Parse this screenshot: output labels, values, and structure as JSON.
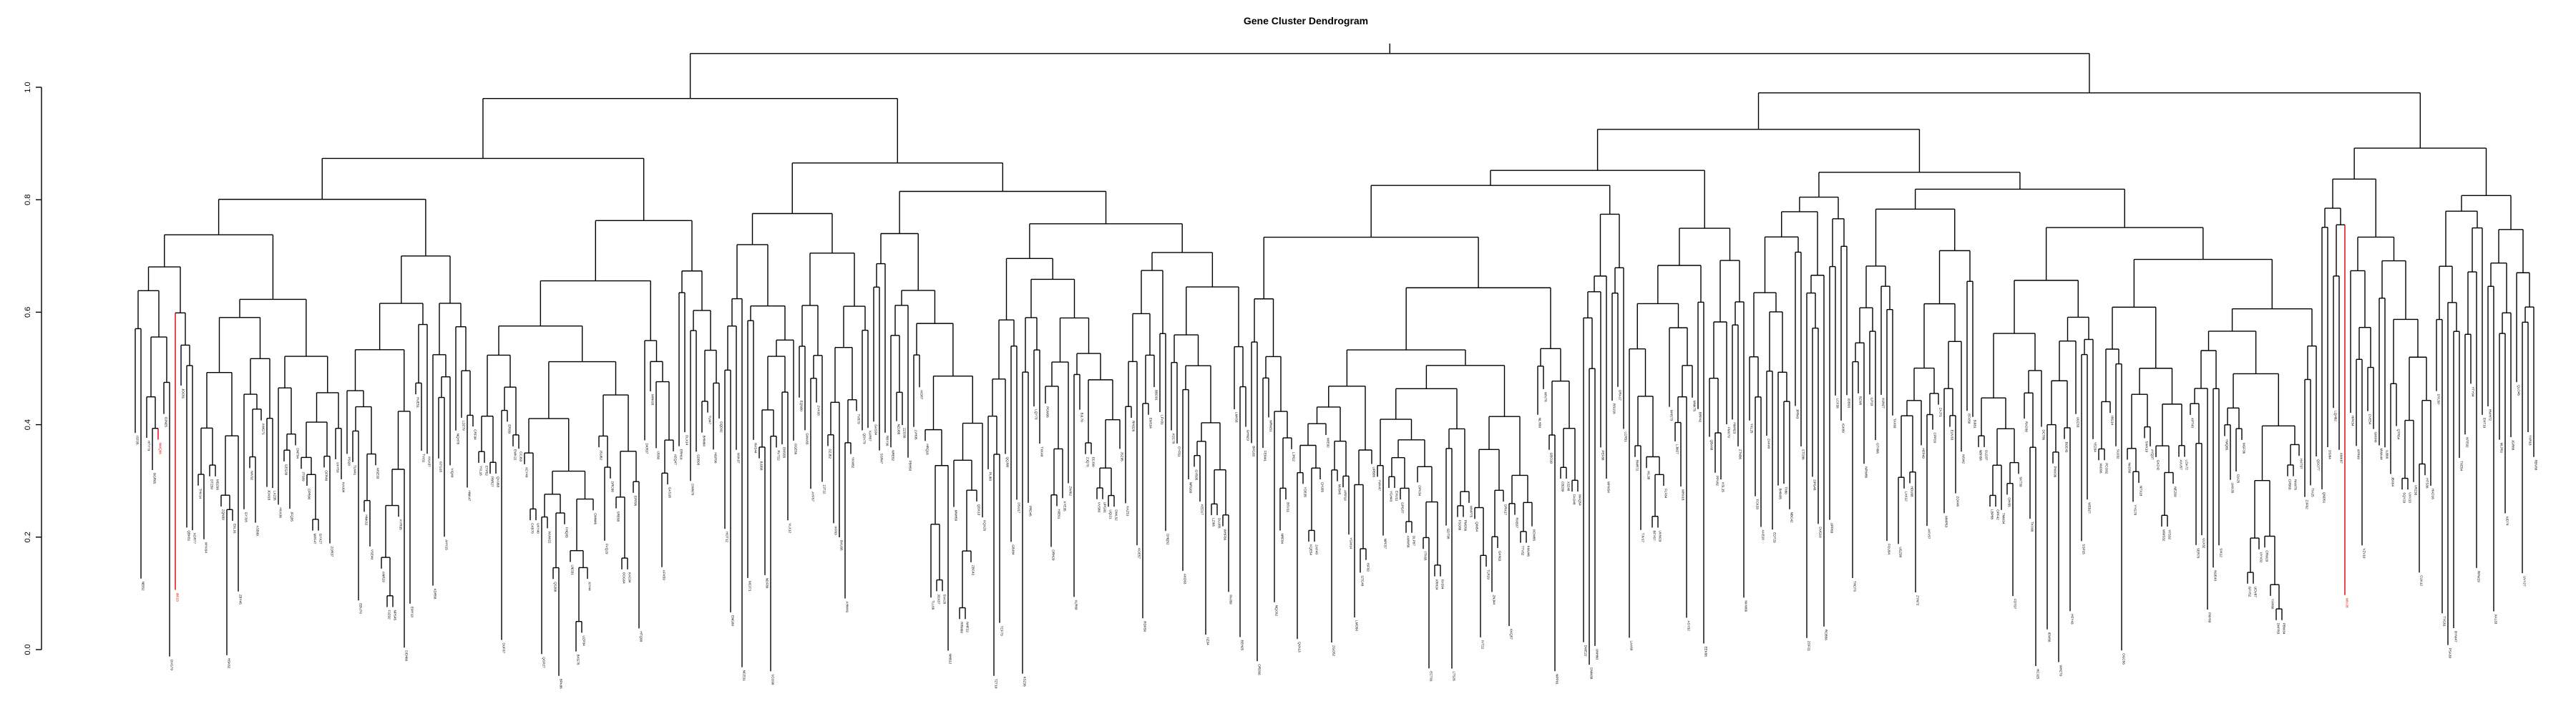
{
  "chart_data": {
    "type": "dendrogram",
    "title": "Gene Cluster Dendrogram",
    "xlabel": "",
    "ylabel": "",
    "ylim": [
      0,
      1
    ],
    "y_ticks": [
      "0.0",
      "0.2",
      "0.4",
      "0.6",
      "0.8",
      "1.0"
    ],
    "grid": false,
    "legend": "none",
    "colors": {
      "branch": "#000000",
      "highlight": "#e00000",
      "background": "#ffffff"
    },
    "leaf_count": 420,
    "highlighted_leaves": [
      4,
      7,
      386
    ],
    "tree_heights": {
      "root": 1.06,
      "left_main": 0.98,
      "right_main": 0.99
    }
  }
}
